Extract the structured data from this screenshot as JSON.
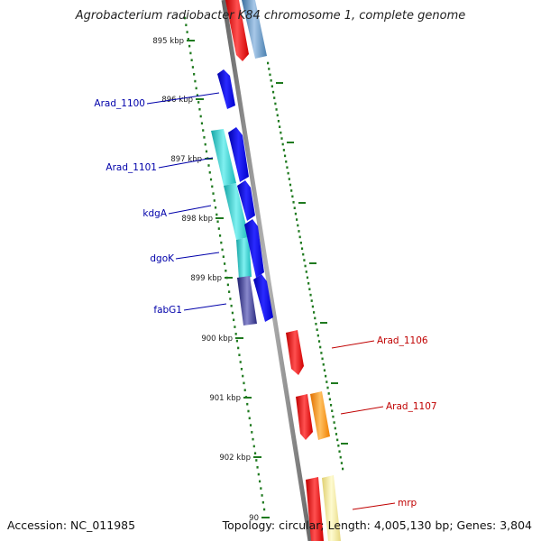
{
  "title": "Agrobacterium radiobacter K84 chromosome 1, complete genome",
  "accession": "Accession: NC_011985",
  "topology": "Topology: circular; Length: 4,005,130 bp; Genes: 3,804",
  "colors": {
    "tick": "#1f7a1f",
    "backbone": "#8a8a8a",
    "left_label": "#0000aa",
    "right_label": "#c00000",
    "blue": "#0000ee",
    "cyan": "#22cccc",
    "navy": "#33338f",
    "red": "#ee0000",
    "orange": "#ff8c00",
    "steel": "#4f86b8",
    "khaki": "#eee59a"
  },
  "ticks": [
    {
      "label": "895 kbp"
    },
    {
      "label": "896 kbp"
    },
    {
      "label": "897 kbp"
    },
    {
      "label": "898 kbp"
    },
    {
      "label": "899 kbp"
    },
    {
      "label": "900 kbp"
    },
    {
      "label": "901 kbp"
    },
    {
      "label": "902 kbp"
    },
    {
      "label": "90"
    }
  ],
  "left_genes": [
    {
      "label": "Arad_1100"
    },
    {
      "label": "Arad_1101"
    },
    {
      "label": "kdgA"
    },
    {
      "label": "dgoK"
    },
    {
      "label": "fabG1"
    }
  ],
  "right_genes": [
    {
      "label": "Arad_1106"
    },
    {
      "label": "Arad_1107"
    },
    {
      "label": "mrp"
    }
  ]
}
